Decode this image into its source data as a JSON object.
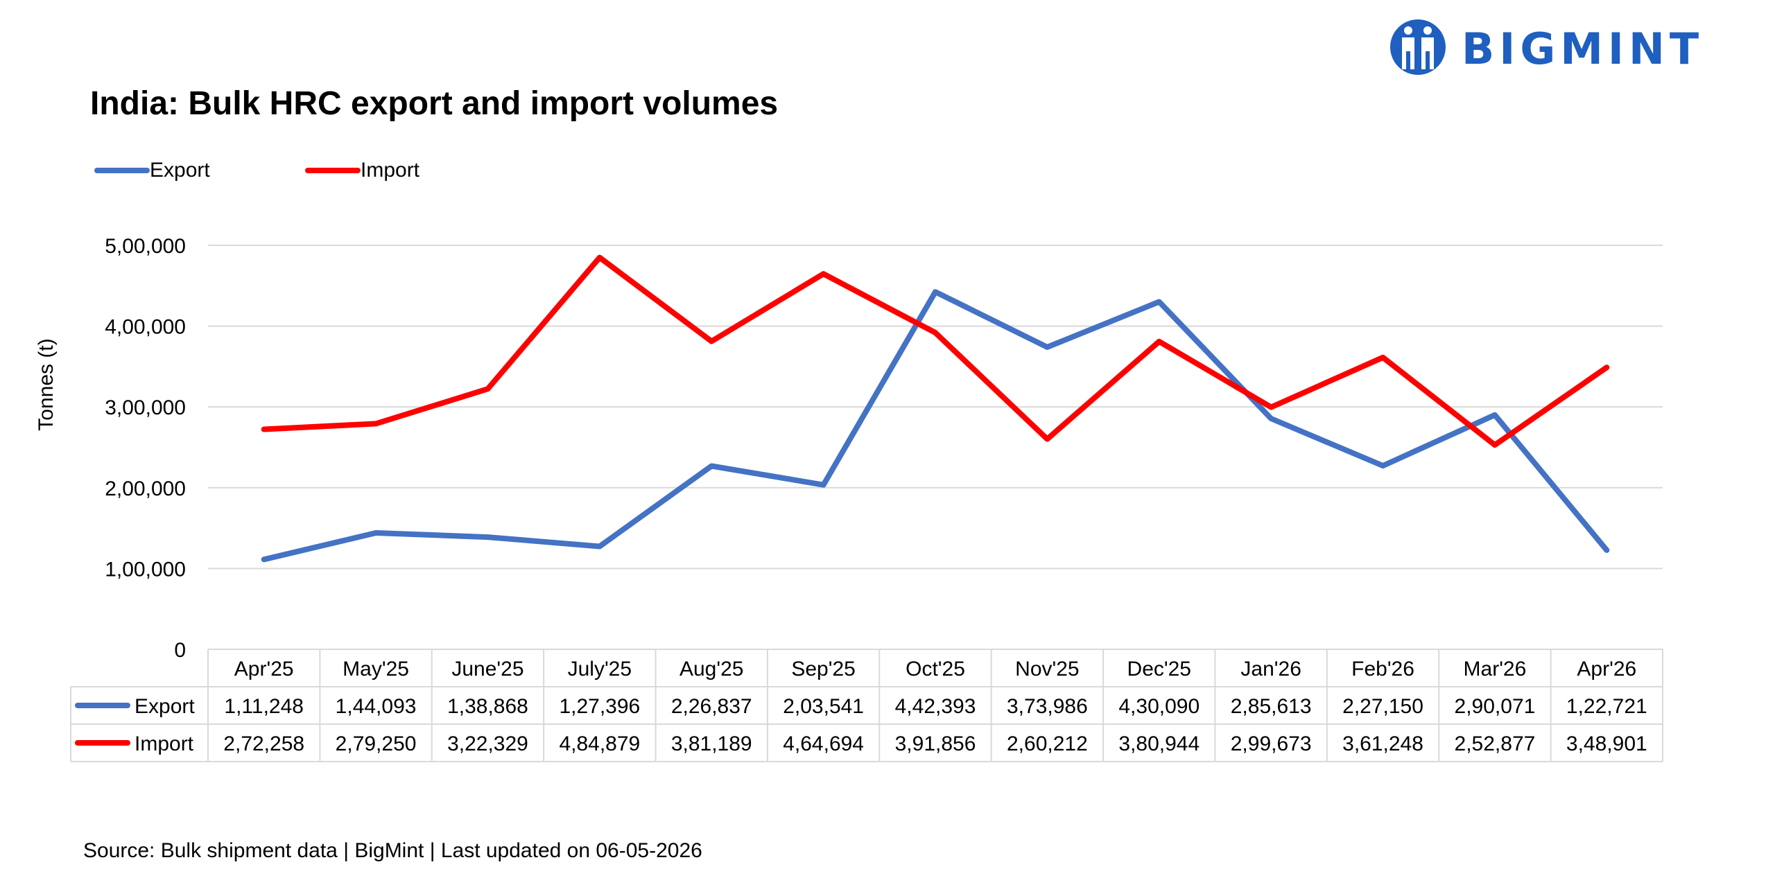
{
  "brand": {
    "logo_text": "BIGMINT",
    "color": "#1f5fbf"
  },
  "source_text": "Source: Bulk shipment data | BigMint | Last updated on 06-05-2026",
  "chart_data": {
    "type": "line",
    "title": "India: Bulk HRC export and import volumes",
    "xlabel": "",
    "ylabel": "Tonnes (t)",
    "ylim": [
      0,
      500000
    ],
    "yticks": [
      0,
      100000,
      200000,
      300000,
      400000,
      500000
    ],
    "ytick_labels": [
      "0",
      "1,00,000",
      "2,00,000",
      "3,00,000",
      "4,00,000",
      "5,00,000"
    ],
    "grid": true,
    "legend": "top-left",
    "categories": [
      "Apr'25",
      "May'25",
      "June'25",
      "July'25",
      "Aug'25",
      "Sep'25",
      "Oct'25",
      "Nov'25",
      "Dec'25",
      "Jan'26",
      "Feb'26",
      "Mar'26",
      "Apr'26"
    ],
    "series": [
      {
        "name": "Export",
        "color": "#4472c4",
        "values": [
          111248,
          144093,
          138868,
          127396,
          226837,
          203541,
          442393,
          373986,
          430090,
          285613,
          227150,
          290071,
          122721
        ],
        "labels": [
          "1,11,248",
          "1,44,093",
          "1,38,868",
          "1,27,396",
          "2,26,837",
          "2,03,541",
          "4,42,393",
          "3,73,986",
          "4,30,090",
          "2,85,613",
          "2,27,150",
          "2,90,071",
          "1,22,721"
        ]
      },
      {
        "name": "Import",
        "color": "#ff0000",
        "values": [
          272258,
          279250,
          322329,
          484879,
          381189,
          464694,
          391856,
          260212,
          380944,
          299673,
          361248,
          252877,
          348901
        ],
        "labels": [
          "2,72,258",
          "2,79,250",
          "3,22,329",
          "4,84,879",
          "3,81,189",
          "4,64,694",
          "3,91,856",
          "2,60,212",
          "3,80,944",
          "2,99,673",
          "3,61,248",
          "2,52,877",
          "3,48,901"
        ]
      }
    ]
  }
}
